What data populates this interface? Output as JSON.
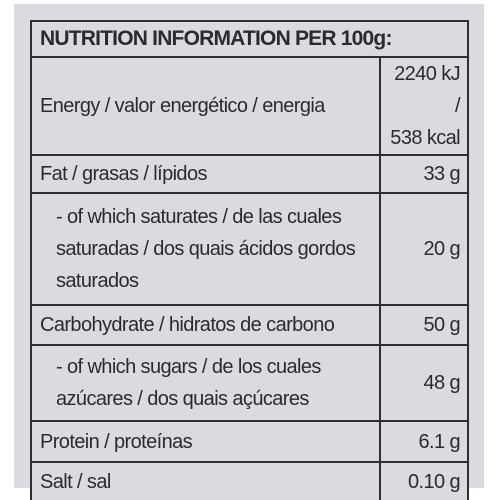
{
  "title": "NUTRITION INFORMATION PER 100g:",
  "rows": [
    {
      "label": "Energy / valor energético / energia",
      "value_line1": "2240 kJ /",
      "value_line2": "538 kcal"
    },
    {
      "label": "Fat / grasas / lípidos",
      "value": "33 g"
    },
    {
      "label_line1": "- of which saturates / de las cuales",
      "label_line2": "saturadas / dos quais ácidos gordos",
      "label_line3": "saturados",
      "value": "20 g"
    },
    {
      "label": "Carbohydrate / hidratos de carbono",
      "value": "50 g"
    },
    {
      "label_line1": "- of which sugars / de los cuales",
      "label_line2": "azúcares / dos quais açúcares",
      "value": "48 g"
    },
    {
      "label": "Protein / proteínas",
      "value": "6.1 g"
    },
    {
      "label": "Salt / sal",
      "value": "0.10 g"
    }
  ]
}
